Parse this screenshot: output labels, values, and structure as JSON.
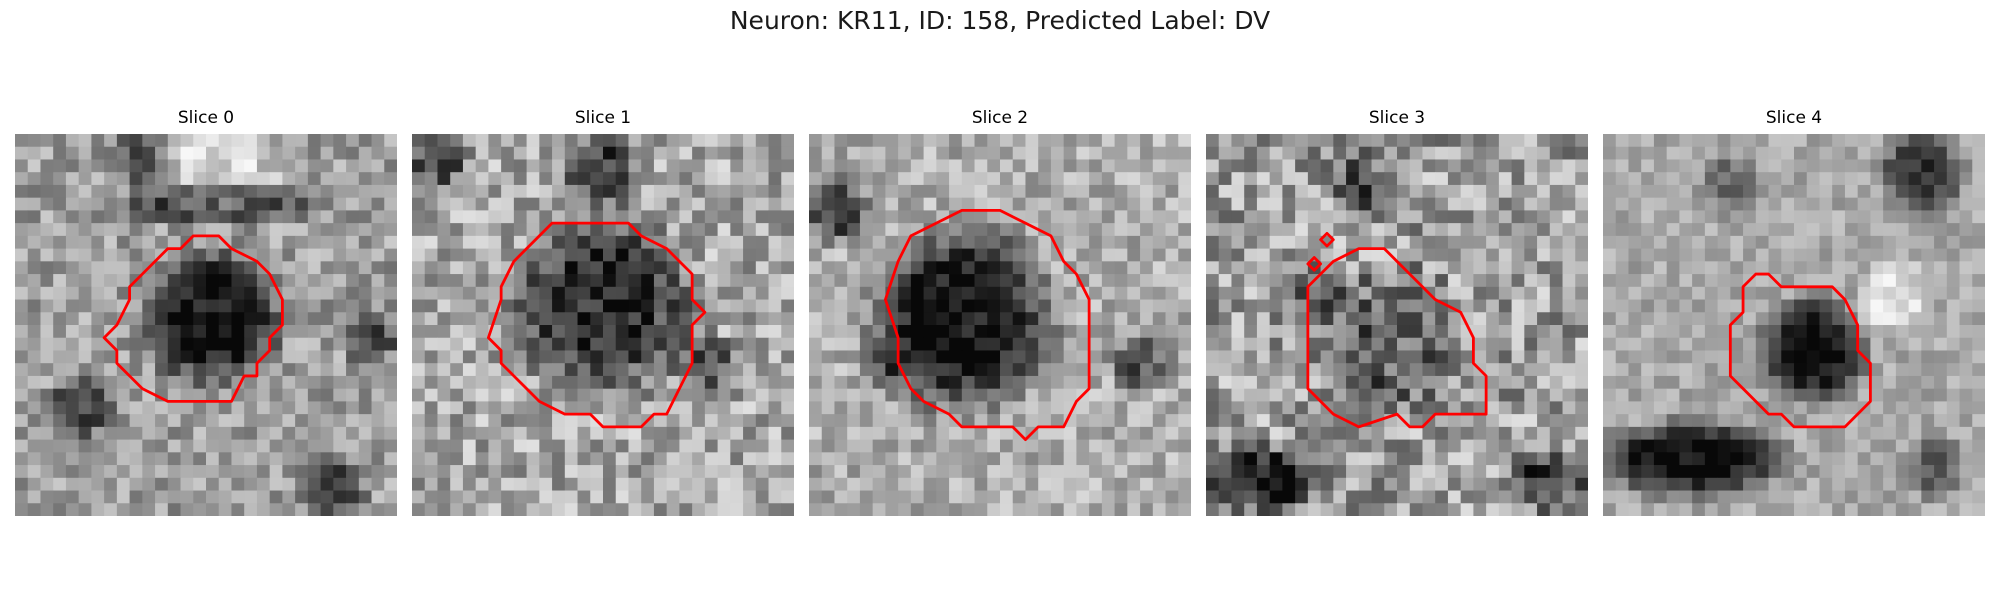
{
  "figure": {
    "title": "Neuron: KR11, ID: 158, Predicted Label: DV",
    "contour_color": "#ff0000",
    "panels": [
      {
        "title": "Slice 0",
        "image": "grayscale microscopy slice with red cell outline"
      },
      {
        "title": "Slice 1",
        "image": "grayscale microscopy slice with red cell outline"
      },
      {
        "title": "Slice 2",
        "image": "grayscale microscopy slice with red cell outline"
      },
      {
        "title": "Slice 3",
        "image": "grayscale microscopy slice with red cell outline"
      },
      {
        "title": "Slice 4",
        "image": "grayscale microscopy slice with red cell outline"
      }
    ]
  }
}
